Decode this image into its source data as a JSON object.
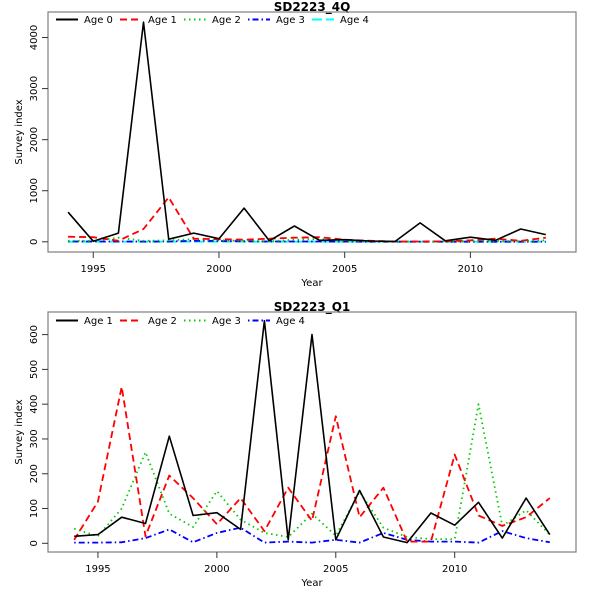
{
  "chart_data": [
    {
      "type": "line",
      "title": "SD2223_4Q",
      "xlabel": "Year",
      "ylabel": "Survey index",
      "x": [
        1994,
        1995,
        1996,
        1997,
        1998,
        1999,
        2000,
        2001,
        2002,
        2003,
        2004,
        2005,
        2006,
        2007,
        2008,
        2009,
        2010,
        2011,
        2012,
        2013
      ],
      "xticks": [
        1995,
        2000,
        2005,
        2010
      ],
      "xtick_labels": [
        "1995",
        "2000",
        "2005",
        "2010"
      ],
      "yticks": [
        0,
        1000,
        2000,
        3000,
        4000
      ],
      "ytick_labels": [
        "0",
        "1000",
        "2000",
        "3000",
        "4000"
      ],
      "xlim": [
        1993.2,
        2014.2
      ],
      "ylim": [
        -200,
        4500
      ],
      "grid": false,
      "legend_position": "top",
      "series": [
        {
          "name": "Age 0",
          "color": "#000000",
          "dash": "solid",
          "values": [
            580,
            10,
            170,
            4300,
            50,
            170,
            60,
            660,
            20,
            310,
            30,
            40,
            15,
            5,
            370,
            20,
            90,
            30,
            250,
            140
          ]
        },
        {
          "name": "Age 1",
          "color": "#ff0000",
          "dash": "dashed",
          "values": [
            100,
            90,
            20,
            250,
            870,
            60,
            50,
            40,
            60,
            80,
            90,
            40,
            20,
            5,
            5,
            10,
            30,
            60,
            20,
            80
          ]
        },
        {
          "name": "Age 2",
          "color": "#00cd00",
          "dash": "dotted",
          "values": [
            20,
            20,
            80,
            20,
            30,
            50,
            30,
            20,
            10,
            40,
            50,
            20,
            5,
            3,
            3,
            5,
            10,
            20,
            10,
            30
          ]
        },
        {
          "name": "Age 3",
          "color": "#0000ff",
          "dash": "dotdash",
          "values": [
            5,
            5,
            5,
            3,
            5,
            20,
            15,
            10,
            5,
            5,
            5,
            3,
            2,
            2,
            2,
            2,
            2,
            2,
            2,
            2
          ]
        },
        {
          "name": "Age 4",
          "color": "#00ffff",
          "dash": "longdash",
          "values": [
            2,
            2,
            2,
            2,
            2,
            2,
            2,
            2,
            2,
            2,
            2,
            2,
            2,
            2,
            2,
            2,
            2,
            2,
            2,
            2
          ]
        }
      ]
    },
    {
      "type": "line",
      "title": "SD2223_Q1",
      "xlabel": "Year",
      "ylabel": "Survey index",
      "x": [
        1994,
        1995,
        1996,
        1997,
        1998,
        1999,
        2000,
        2001,
        2002,
        2003,
        2004,
        2005,
        2006,
        2007,
        2008,
        2009,
        2010,
        2011,
        2012,
        2013,
        2014
      ],
      "xticks": [
        1995,
        2000,
        2005,
        2010
      ],
      "xtick_labels": [
        "1995",
        "2000",
        "2005",
        "2010"
      ],
      "yticks": [
        0,
        100,
        200,
        300,
        400,
        500,
        600
      ],
      "ytick_labels": [
        "0",
        "100",
        "200",
        "300",
        "400",
        "500",
        "600"
      ],
      "xlim": [
        1992.9,
        2015.1
      ],
      "ylim": [
        -25,
        665
      ],
      "grid": false,
      "legend_position": "top",
      "series": [
        {
          "name": "Age 1",
          "color": "#000000",
          "dash": "solid",
          "values": [
            20,
            25,
            75,
            57,
            308,
            80,
            88,
            40,
            640,
            10,
            600,
            10,
            152,
            18,
            2,
            87,
            52,
            118,
            15,
            130,
            25
          ]
        },
        {
          "name": "Age 2",
          "color": "#ff0000",
          "dash": "dashed",
          "values": [
            10,
            120,
            450,
            20,
            195,
            130,
            55,
            130,
            35,
            160,
            65,
            365,
            75,
            160,
            5,
            5,
            255,
            80,
            50,
            75,
            130
          ]
        },
        {
          "name": "Age 3",
          "color": "#00cd00",
          "dash": "dotted",
          "values": [
            42,
            20,
            100,
            262,
            85,
            47,
            150,
            68,
            30,
            18,
            85,
            22,
            148,
            45,
            18,
            12,
            12,
            400,
            50,
            95,
            25
          ]
        },
        {
          "name": "Age 4",
          "color": "#0000ff",
          "dash": "dotdash",
          "values": [
            2,
            2,
            3,
            15,
            40,
            3,
            30,
            45,
            2,
            5,
            2,
            10,
            2,
            30,
            10,
            5,
            5,
            2,
            35,
            15,
            3
          ]
        }
      ]
    }
  ]
}
